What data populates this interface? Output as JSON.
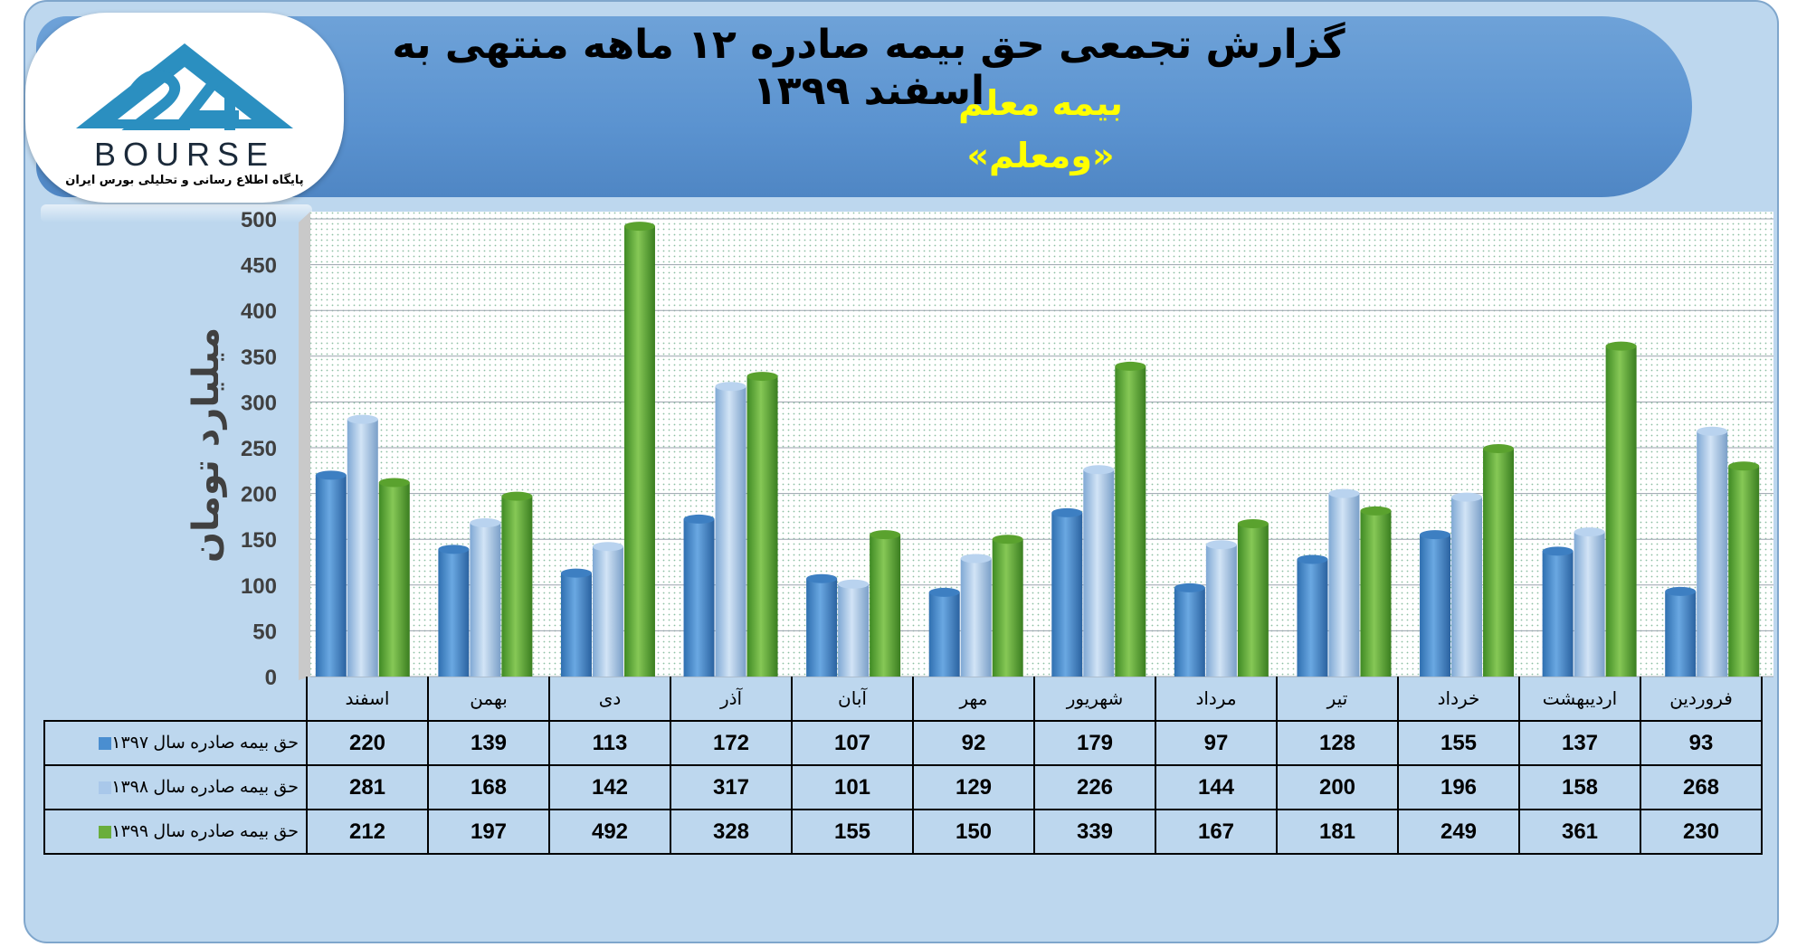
{
  "header": {
    "title": "گزارش تجمعی حق بیمه صادره ۱۲ ماهه منتهی به اسفند ۱۳۹۹",
    "subtitle": "بیمه معلم",
    "ticker": "«ومعلم»"
  },
  "logo": {
    "word": "BOURSE",
    "tagline": "پایگاه اطلاع رسانی و تحلیلی بورس ایران"
  },
  "colors": {
    "series_1397": "#4a8ed0",
    "series_1398": "#a9c8ea",
    "series_1399": "#6aae3c",
    "plot_bg": "#ffffff",
    "dots": "#2e8b57"
  },
  "chart_data": {
    "type": "bar",
    "ylabel": "میلیارد تومان",
    "ylim": [
      0,
      500
    ],
    "yticks": [
      0,
      50,
      100,
      150,
      200,
      250,
      300,
      350,
      400,
      450,
      500
    ],
    "grid": true,
    "categories": [
      "فروردین",
      "اردیبهشت",
      "خرداد",
      "تیر",
      "مرداد",
      "شهریور",
      "مهر",
      "آبان",
      "آذر",
      "دی",
      "بهمن",
      "اسفند"
    ],
    "series": [
      {
        "name": "حق بیمه صادره سال ۱۳۹۷",
        "values": [
          93,
          137,
          155,
          128,
          97,
          179,
          92,
          107,
          172,
          113,
          139,
          220
        ]
      },
      {
        "name": "حق بیمه صادره سال ۱۳۹۸",
        "values": [
          268,
          158,
          196,
          200,
          144,
          226,
          129,
          101,
          317,
          142,
          168,
          281
        ]
      },
      {
        "name": "حق بیمه صادره سال ۱۳۹۹",
        "values": [
          230,
          361,
          249,
          181,
          167,
          339,
          150,
          155,
          328,
          492,
          197,
          212
        ]
      }
    ]
  }
}
